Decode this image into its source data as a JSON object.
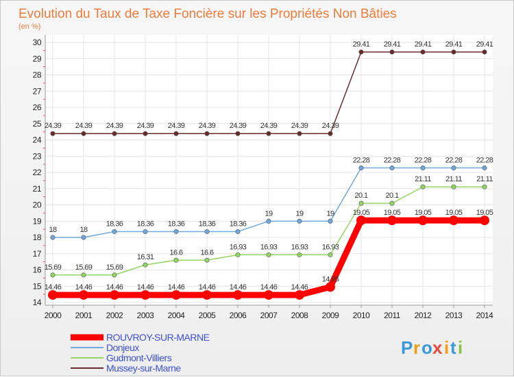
{
  "chart_data": {
    "type": "line",
    "title": "Evolution du Taux de Taxe Foncière sur les Propriétés Non Bâties",
    "subtitle": "(en %)",
    "x": [
      "2000",
      "2001",
      "2002",
      "2003",
      "2004",
      "2005",
      "2006",
      "2007",
      "2008",
      "2009",
      "2010",
      "2011",
      "2012",
      "2013",
      "2014"
    ],
    "ylim": [
      14,
      30
    ],
    "yticks": [
      "14",
      "15",
      "16",
      "17",
      "18",
      "19",
      "20",
      "21",
      "22",
      "23",
      "24",
      "25",
      "26",
      "27",
      "28",
      "29",
      "30"
    ],
    "grid": true,
    "legend_position": "bottom-left",
    "series": [
      {
        "name": "ROUVROY-SUR-MARNE",
        "color": "#ff0000",
        "values": [
          14.46,
          14.46,
          14.46,
          14.46,
          14.46,
          14.46,
          14.46,
          14.46,
          14.46,
          14.95,
          19.05,
          19.05,
          19.05,
          19.05,
          19.05
        ],
        "labels": [
          "14.46",
          "14.46",
          "14.46",
          "14.46",
          "14.46",
          "14.46",
          "14.46",
          "14.46",
          "14.46",
          "14.95",
          "19.05",
          "19.05",
          "19.05",
          "19.05",
          "19.05"
        ]
      },
      {
        "name": "Donjeux",
        "color": "#6fa8dc",
        "values": [
          18,
          18,
          18.36,
          18.36,
          18.36,
          18.36,
          18.36,
          19,
          19,
          19,
          22.28,
          22.28,
          22.28,
          22.28,
          22.28
        ],
        "labels": [
          "18",
          "18",
          "18.36",
          "18.36",
          "18.36",
          "18.36",
          "18.36",
          "19",
          "19",
          "19",
          "22.28",
          "22.28",
          "22.28",
          "22.28",
          "22.28"
        ]
      },
      {
        "name": "Gudmont-Villiers",
        "color": "#93d563",
        "values": [
          15.69,
          15.69,
          15.69,
          16.31,
          16.6,
          16.6,
          16.93,
          16.93,
          16.93,
          16.93,
          20.1,
          20.1,
          21.11,
          21.11,
          21.11
        ],
        "labels": [
          "15.69",
          "15.69",
          "15.69",
          "16.31",
          "16.6",
          "16.6",
          "16.93",
          "16.93",
          "16.93",
          "16.93",
          "20.1",
          "20.1",
          "21.11",
          "21.11",
          "21.11"
        ]
      },
      {
        "name": "Mussey-sur-Marne",
        "color": "#6b2a2a",
        "values": [
          24.39,
          24.39,
          24.39,
          24.39,
          24.39,
          24.39,
          24.39,
          24.39,
          24.39,
          24.39,
          29.41,
          29.41,
          29.41,
          29.41,
          29.41
        ],
        "labels": [
          "24.39",
          "24.39",
          "24.39",
          "24.39",
          "24.39",
          "24.39",
          "24.39",
          "24.39",
          "24.39",
          "24.39",
          "29.41",
          "29.41",
          "29.41",
          "29.41",
          "29.41"
        ]
      }
    ]
  },
  "logo": {
    "letters": [
      "P",
      "r",
      "o",
      "x",
      "i",
      "t",
      "i"
    ],
    "colors": [
      "#3a9ad9",
      "#f39c12",
      "#3a9ad9",
      "#e74c3c",
      "#f39c12",
      "#3a9ad9",
      "#8bc34a"
    ]
  }
}
